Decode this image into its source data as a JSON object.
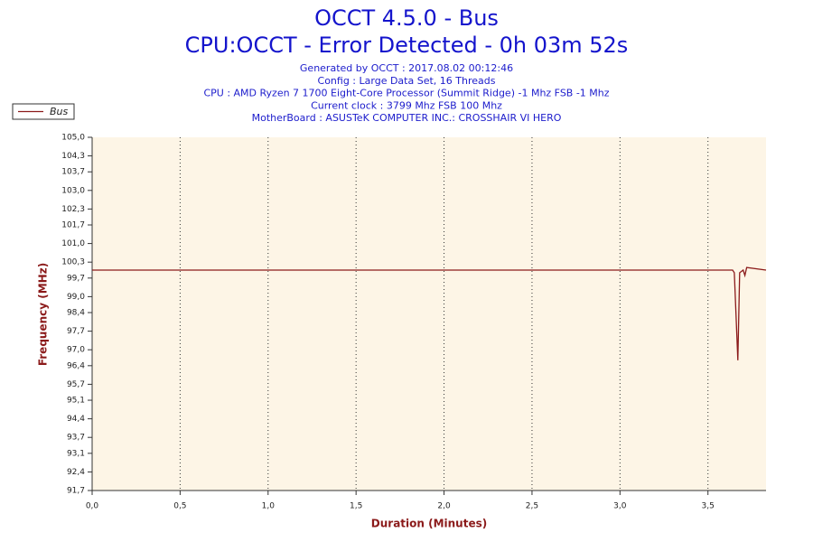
{
  "chart_data": {
    "type": "line",
    "title": "OCCT 4.5.0 - Bus",
    "subtitle": "CPU:OCCT - Error Detected - 0h 03m 52s",
    "info_lines": [
      "Generated by OCCT : 2017.08.02 00:12:46",
      "Config : Large Data Set, 16 Threads",
      "CPU : AMD Ryzen 7 1700 Eight-Core Processor (Summit Ridge) -1 Mhz FSB -1 Mhz",
      "Current clock : 3799 Mhz FSB 100 Mhz",
      "MotherBoard : ASUSTeK COMPUTER INC.: CROSSHAIR VI HERO"
    ],
    "x_label": "Duration (Minutes)",
    "y_label": "Frequency (MHz)",
    "x": [
      0,
      0.5,
      1.0,
      1.5,
      2.0,
      2.5,
      3.0,
      3.5,
      3.64,
      3.65,
      3.67,
      3.68,
      3.7,
      3.71,
      3.72,
      3.83
    ],
    "series": [
      {
        "name": "Bus",
        "color": "#8b1a1a",
        "values": [
          100.0,
          100.0,
          100.0,
          100.0,
          100.0,
          100.0,
          100.0,
          100.0,
          100.0,
          99.9,
          96.6,
          99.9,
          100.0,
          99.8,
          100.1,
          100.0
        ]
      }
    ],
    "xlim": [
      0,
      3.83
    ],
    "ylim": [
      91.7,
      105.0
    ],
    "xticks": [
      {
        "value": 0,
        "label": "0,0"
      },
      {
        "value": 0.5,
        "label": "0,5"
      },
      {
        "value": 1.0,
        "label": "1,0"
      },
      {
        "value": 1.5,
        "label": "1,5"
      },
      {
        "value": 2.0,
        "label": "2,0"
      },
      {
        "value": 2.5,
        "label": "2,5"
      },
      {
        "value": 3.0,
        "label": "3,0"
      },
      {
        "value": 3.5,
        "label": "3,5"
      }
    ],
    "yticks": [
      {
        "value": 91.7,
        "label": "91,7"
      },
      {
        "value": 92.4,
        "label": "92,4"
      },
      {
        "value": 93.1,
        "label": "93,1"
      },
      {
        "value": 93.7,
        "label": "93,7"
      },
      {
        "value": 94.4,
        "label": "94,4"
      },
      {
        "value": 95.1,
        "label": "95,1"
      },
      {
        "value": 95.7,
        "label": "95,7"
      },
      {
        "value": 96.4,
        "label": "96,4"
      },
      {
        "value": 97.0,
        "label": "97,0"
      },
      {
        "value": 97.7,
        "label": "97,7"
      },
      {
        "value": 98.4,
        "label": "98,4"
      },
      {
        "value": 99.0,
        "label": "99,0"
      },
      {
        "value": 99.7,
        "label": "99,7"
      },
      {
        "value": 100.3,
        "label": "100,3"
      },
      {
        "value": 101.0,
        "label": "101,0"
      },
      {
        "value": 101.7,
        "label": "101,7"
      },
      {
        "value": 102.3,
        "label": "102,3"
      },
      {
        "value": 103.0,
        "label": "103,0"
      },
      {
        "value": 103.7,
        "label": "103,7"
      },
      {
        "value": 104.3,
        "label": "104,3"
      },
      {
        "value": 105.0,
        "label": "105,0"
      }
    ],
    "x_grid": true,
    "plot_background": "#fdf5e6"
  }
}
